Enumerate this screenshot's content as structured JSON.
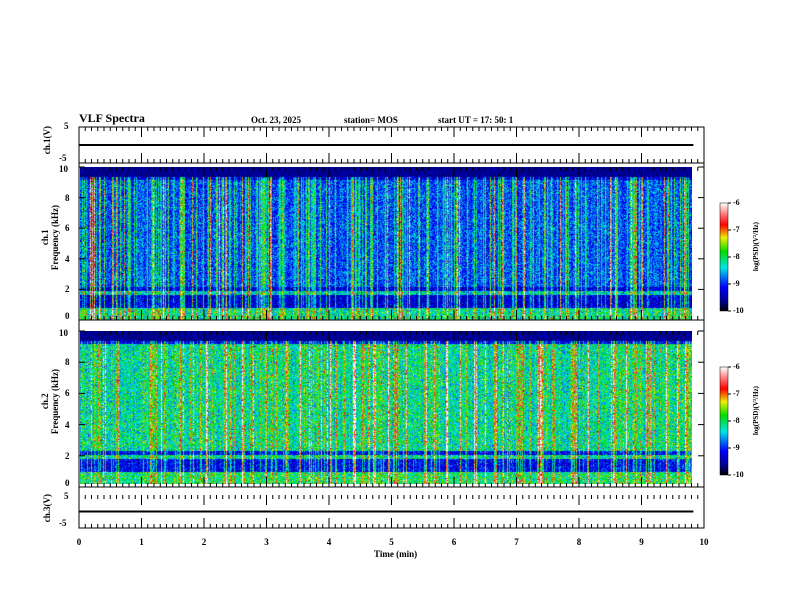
{
  "header": {
    "title": "VLF Spectra",
    "date": "Oct. 23, 2025",
    "station": "station= MOS",
    "start": "start  UT =   17: 50: 1"
  },
  "chart_data": [
    {
      "type": "line",
      "name": "ch1",
      "ylabel": "ch.1(V)",
      "ylim": [
        -5,
        5
      ],
      "yticks": [
        "5",
        "-5"
      ],
      "baseline": 0,
      "xlim": [
        0,
        10
      ]
    },
    {
      "type": "heatmap",
      "name": "ch1-spectrogram",
      "ylabel": "ch.1\nFrequency (kHz)",
      "ylabel_line1": "ch.1",
      "ylabel_line2": "Frequency (kHz)",
      "ylim": [
        0,
        10
      ],
      "yticks": [
        "0",
        "2",
        "4",
        "6",
        "8",
        "10"
      ],
      "xlim": [
        0,
        9.83
      ],
      "colorbar": {
        "label": "log(PSD)(V²/Hz)",
        "range": [
          -10,
          -6
        ],
        "ticks": [
          "-6",
          "-7",
          "-8",
          "-9",
          "-10"
        ]
      }
    },
    {
      "type": "heatmap",
      "name": "ch2-spectrogram",
      "ylabel_line1": "ch.2",
      "ylabel_line2": "Frequency (kHz)",
      "ylim": [
        0,
        10
      ],
      "yticks": [
        "0",
        "2",
        "4",
        "6",
        "8",
        "10"
      ],
      "xlim": [
        0,
        9.83
      ],
      "colorbar": {
        "label": "log(PSD)(V²/Hz)",
        "range": [
          -10,
          -6
        ],
        "ticks": [
          "-6",
          "-7",
          "-8",
          "-9",
          "-10"
        ]
      }
    },
    {
      "type": "line",
      "name": "ch3",
      "ylabel": "ch.3(V)",
      "ylim": [
        -5,
        5
      ],
      "yticks": [
        "5",
        "-5"
      ],
      "baseline": 0,
      "xlim": [
        0,
        10
      ]
    }
  ],
  "xaxis": {
    "label": "Time (min)",
    "range": [
      0,
      10
    ],
    "ticks": [
      "0",
      "1",
      "2",
      "3",
      "4",
      "5",
      "6",
      "7",
      "8",
      "9",
      "10"
    ]
  }
}
